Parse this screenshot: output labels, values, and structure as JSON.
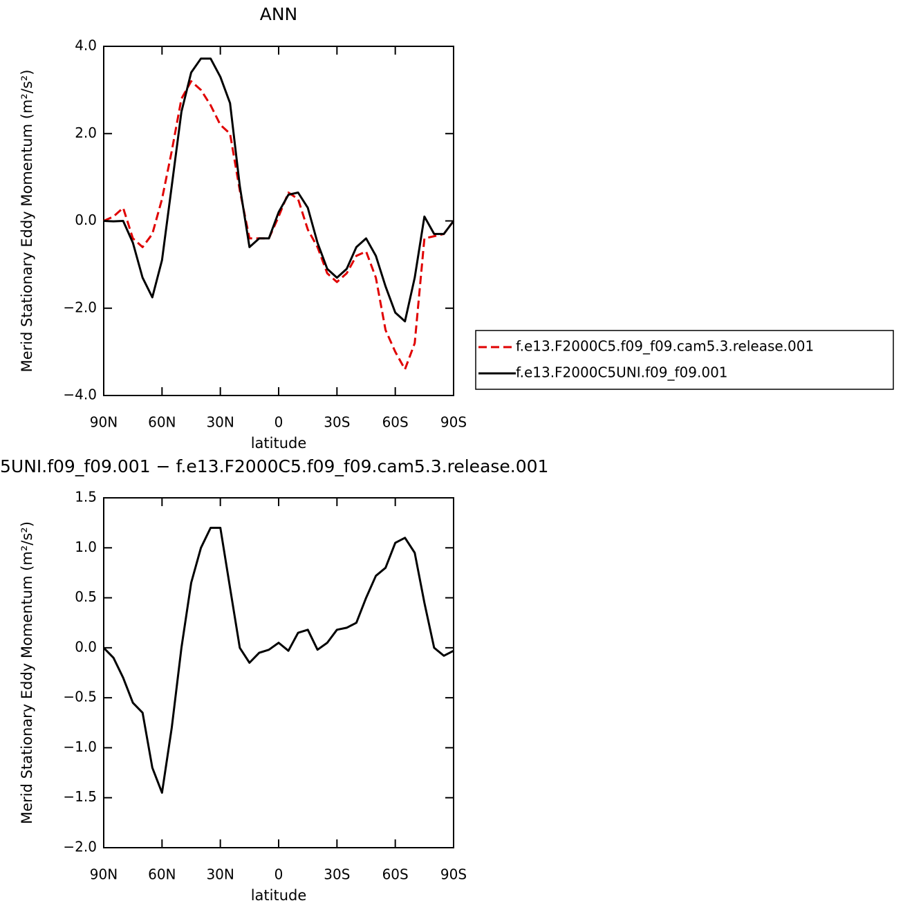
{
  "chart_data": [
    {
      "type": "line",
      "title": "ANN",
      "xlabel": "latitude",
      "ylabel": "Merid Stationary Eddy Momentum (m²/s²)",
      "x": [
        90,
        85,
        80,
        75,
        70,
        65,
        60,
        55,
        50,
        45,
        40,
        35,
        30,
        25,
        20,
        15,
        10,
        5,
        0,
        -5,
        -10,
        -15,
        -20,
        -25,
        -30,
        -35,
        -40,
        -45,
        -50,
        -55,
        -60,
        -65,
        -70,
        -75,
        -80,
        -85,
        -90
      ],
      "series": [
        {
          "name": "f.e13.F2000C5.f09_f09.cam5.3.release.001",
          "color": "#e00000",
          "line_style": "dashed",
          "values": [
            0,
            0.1,
            0.3,
            -0.4,
            -0.6,
            -0.3,
            0.5,
            1.6,
            2.8,
            3.2,
            3.0,
            2.65,
            2.2,
            2.0,
            0.7,
            -0.4,
            -0.4,
            -0.4,
            0.1,
            0.65,
            0.5,
            -0.2,
            -0.6,
            -1.2,
            -1.4,
            -1.2,
            -0.8,
            -0.7,
            -1.3,
            -2.5,
            -3.0,
            -3.4,
            -2.8,
            -0.4,
            -0.35,
            -0.3,
            0.0
          ]
        },
        {
          "name": "f.e13.F2000C5UNI.f09_f09.001",
          "color": "#000000",
          "line_style": "solid",
          "values": [
            0,
            -0.01,
            0.0,
            -0.5,
            -1.3,
            -1.75,
            -0.9,
            0.8,
            2.5,
            3.4,
            3.72,
            3.72,
            3.3,
            2.7,
            0.8,
            -0.6,
            -0.4,
            -0.4,
            0.2,
            0.6,
            0.65,
            0.3,
            -0.5,
            -1.1,
            -1.3,
            -1.1,
            -0.6,
            -0.4,
            -0.8,
            -1.5,
            -2.1,
            -2.3,
            -1.3,
            0.1,
            -0.3,
            -0.3,
            0.0
          ]
        }
      ],
      "xlim": [
        90,
        -90
      ],
      "xticks": [
        {
          "value": 90,
          "label": "90N"
        },
        {
          "value": 60,
          "label": "60N"
        },
        {
          "value": 30,
          "label": "30N"
        },
        0,
        {
          "value": -30,
          "label": "30S"
        },
        {
          "value": -60,
          "label": "60S"
        },
        {
          "value": -90,
          "label": "90S"
        }
      ],
      "ylim": [
        -4,
        4
      ],
      "yticks": [
        {
          "value": 4,
          "label": "4.0"
        },
        {
          "value": 2,
          "label": "2.0"
        },
        {
          "value": 0,
          "label": "0.0"
        },
        {
          "value": -2,
          "label": "−2.0"
        },
        {
          "value": -4,
          "label": "−4.0"
        }
      ],
      "legend": "right"
    },
    {
      "type": "line",
      "title": "5UNI.f09_f09.001 − f.e13.F2000C5.f09_f09.cam5.3.release.001",
      "xlabel": "latitude",
      "ylabel": "Merid Stationary Eddy Momentum (m²/s²)",
      "x": [
        90,
        85,
        80,
        75,
        70,
        65,
        60,
        55,
        50,
        45,
        40,
        35,
        30,
        25,
        20,
        15,
        10,
        5,
        0,
        -5,
        -10,
        -15,
        -20,
        -25,
        -30,
        -35,
        -40,
        -45,
        -50,
        -55,
        -60,
        -65,
        -70,
        -75,
        -80,
        -85,
        -90
      ],
      "series": [
        {
          "color": "#000000",
          "line_style": "solid",
          "values": [
            0,
            -0.1,
            -0.3,
            -0.55,
            -0.65,
            -1.2,
            -1.45,
            -0.8,
            0.0,
            0.65,
            1.0,
            1.2,
            1.2,
            0.6,
            0.0,
            -0.15,
            -0.05,
            -0.02,
            0.05,
            -0.03,
            0.15,
            0.18,
            -0.02,
            0.05,
            0.18,
            0.2,
            0.25,
            0.5,
            0.72,
            0.8,
            1.05,
            1.1,
            0.95,
            0.45,
            0.0,
            -0.08,
            -0.03
          ]
        }
      ],
      "xlim": [
        90,
        -90
      ],
      "xticks": [
        {
          "value": 90,
          "label": "90N"
        },
        {
          "value": 60,
          "label": "60N"
        },
        {
          "value": 30,
          "label": "30N"
        },
        0,
        {
          "value": -30,
          "label": "30S"
        },
        {
          "value": -60,
          "label": "60S"
        },
        {
          "value": -90,
          "label": "90S"
        }
      ],
      "ylim": [
        -2,
        1.5
      ],
      "yticks": [
        {
          "value": 1.5,
          "label": "1.5"
        },
        {
          "value": 1,
          "label": "1.0"
        },
        {
          "value": 0.5,
          "label": "0.5"
        },
        {
          "value": 0,
          "label": "0.0"
        },
        {
          "value": -0.5,
          "label": "−0.5"
        },
        {
          "value": -1,
          "label": "−1.0"
        },
        {
          "value": -1.5,
          "label": "−1.5"
        },
        {
          "value": -2,
          "label": "−2.0"
        }
      ]
    }
  ]
}
